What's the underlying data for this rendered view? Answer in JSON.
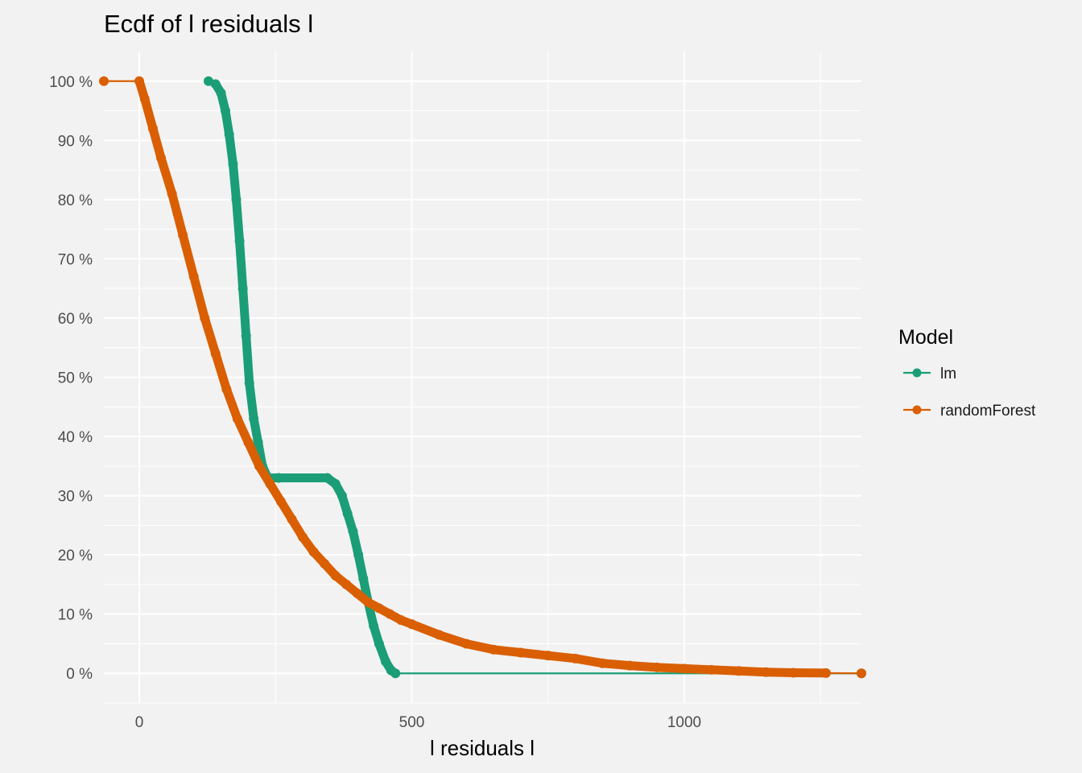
{
  "chart_data": {
    "type": "line",
    "title": "Ecdf of l residuals l",
    "xlabel": "l residuals l",
    "ylabel": "",
    "xlim": [
      -65,
      1325
    ],
    "ylim": [
      -5,
      105
    ],
    "x_ticks": [
      0,
      500,
      1000
    ],
    "x_tick_labels": [
      "0",
      "500",
      "1000"
    ],
    "y_ticks": [
      0,
      10,
      20,
      30,
      40,
      50,
      60,
      70,
      80,
      90,
      100
    ],
    "y_tick_labels": [
      "0 %",
      "10 %",
      "20 %",
      "30 %",
      "40 %",
      "50 %",
      "60 %",
      "70 %",
      "80 %",
      "90 %",
      "100 %"
    ],
    "grid": true,
    "legend": {
      "title": "Model",
      "position": "right"
    },
    "series": [
      {
        "name": "lm",
        "color": "#1b9e77",
        "points": [
          [
            127,
            100
          ],
          [
            140,
            99.5
          ],
          [
            150,
            98
          ],
          [
            158,
            95
          ],
          [
            165,
            91
          ],
          [
            172,
            86
          ],
          [
            178,
            80
          ],
          [
            184,
            73
          ],
          [
            190,
            65
          ],
          [
            196,
            57
          ],
          [
            202,
            49
          ],
          [
            210,
            43
          ],
          [
            218,
            39
          ],
          [
            226,
            35
          ],
          [
            236,
            33
          ],
          [
            256,
            33
          ],
          [
            345,
            33
          ],
          [
            360,
            32
          ],
          [
            372,
            30
          ],
          [
            382,
            27
          ],
          [
            392,
            24
          ],
          [
            402,
            20
          ],
          [
            411,
            16
          ],
          [
            420,
            12
          ],
          [
            430,
            8
          ],
          [
            440,
            5
          ],
          [
            452,
            2
          ],
          [
            462,
            0.5
          ],
          [
            470,
            0
          ],
          [
            1325,
            0
          ]
        ]
      },
      {
        "name": "randomForest",
        "color": "#d95f02",
        "points": [
          [
            -65,
            100
          ],
          [
            0,
            100
          ],
          [
            10,
            97
          ],
          [
            25,
            92
          ],
          [
            40,
            87
          ],
          [
            60,
            81
          ],
          [
            80,
            74
          ],
          [
            100,
            67
          ],
          [
            120,
            60
          ],
          [
            140,
            54
          ],
          [
            160,
            48
          ],
          [
            180,
            43
          ],
          [
            200,
            39
          ],
          [
            220,
            35
          ],
          [
            240,
            32
          ],
          [
            260,
            29
          ],
          [
            280,
            26
          ],
          [
            300,
            23
          ],
          [
            320,
            20.5
          ],
          [
            340,
            18.5
          ],
          [
            360,
            16.5
          ],
          [
            380,
            15
          ],
          [
            400,
            13.5
          ],
          [
            420,
            12
          ],
          [
            440,
            11
          ],
          [
            460,
            10
          ],
          [
            480,
            9
          ],
          [
            500,
            8.3
          ],
          [
            550,
            6.5
          ],
          [
            600,
            5
          ],
          [
            650,
            4
          ],
          [
            700,
            3.5
          ],
          [
            750,
            3
          ],
          [
            800,
            2.5
          ],
          [
            850,
            1.7
          ],
          [
            900,
            1.3
          ],
          [
            950,
            1
          ],
          [
            1000,
            0.8
          ],
          [
            1050,
            0.6
          ],
          [
            1100,
            0.4
          ],
          [
            1150,
            0.2
          ],
          [
            1200,
            0.1
          ],
          [
            1260,
            0.05
          ],
          [
            1325,
            0
          ]
        ]
      }
    ]
  }
}
